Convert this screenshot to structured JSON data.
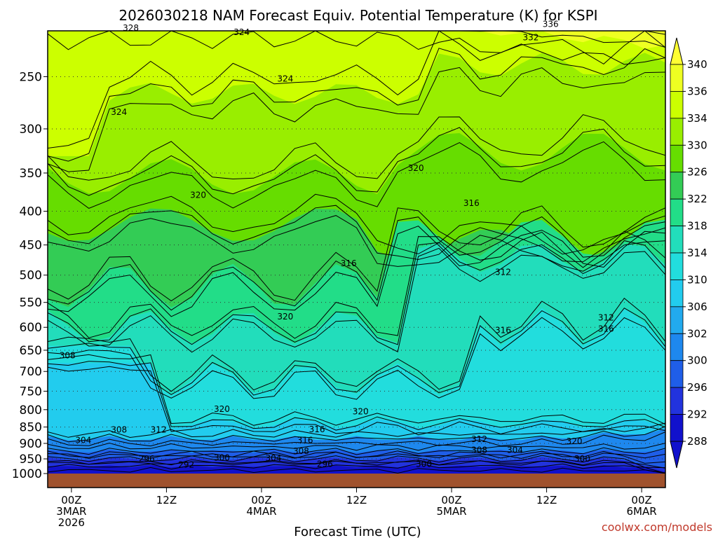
{
  "chart_data": {
    "type": "heatmap",
    "title": "2026030218 NAM Forecast Equiv. Potential Temperature (K) for KSPI",
    "xlabel": "Forecast Time (UTC)",
    "ylabel": "",
    "credit": "coolwx.com/models",
    "y_axis": {
      "scale": "log-pressure",
      "ylim": [
        1000,
        200
      ],
      "ticks": [
        250,
        300,
        350,
        400,
        450,
        500,
        550,
        600,
        650,
        700,
        750,
        800,
        850,
        900,
        950,
        1000
      ]
    },
    "x_axis": {
      "ticks": [
        {
          "hour": 0,
          "lines": [
            "00Z",
            "3MAR",
            "2026"
          ]
        },
        {
          "hour": 12,
          "lines": [
            "12Z"
          ]
        },
        {
          "hour": 24,
          "lines": [
            "00Z",
            "4MAR"
          ]
        },
        {
          "hour": 36,
          "lines": [
            "12Z"
          ]
        },
        {
          "hour": 48,
          "lines": [
            "00Z",
            "5MAR"
          ]
        },
        {
          "hour": 60,
          "lines": [
            "12Z"
          ]
        },
        {
          "hour": 72,
          "lines": [
            "00Z",
            "6MAR"
          ]
        }
      ],
      "xlim": [
        -3,
        75
      ]
    },
    "colorbar": {
      "ticks": [
        340,
        336,
        334,
        330,
        326,
        322,
        318,
        314,
        310,
        306,
        302,
        300,
        296,
        292,
        288
      ],
      "colors": [
        "#ffff33",
        "#eeff22",
        "#ccff00",
        "#99ee00",
        "#66dd00",
        "#33cc55",
        "#22dd88",
        "#22ddbb",
        "#22dddd",
        "#22ccee",
        "#22aaee",
        "#1e88ee",
        "#1f5ee8",
        "#2233dd",
        "#1111cc"
      ]
    },
    "contour_labels": [
      {
        "text": "336",
        "hour": 60.5,
        "p": 208
      },
      {
        "text": "332",
        "hour": 58,
        "p": 218
      },
      {
        "text": "328",
        "hour": 7.5,
        "p": 211
      },
      {
        "text": "324",
        "hour": 21.5,
        "p": 214
      },
      {
        "text": "324",
        "hour": 27,
        "p": 252
      },
      {
        "text": "324",
        "hour": 6,
        "p": 283
      },
      {
        "text": "320",
        "hour": 43.5,
        "p": 344
      },
      {
        "text": "320",
        "hour": 16,
        "p": 378
      },
      {
        "text": "316",
        "hour": 50.5,
        "p": 389
      },
      {
        "text": "316",
        "hour": 35,
        "p": 480
      },
      {
        "text": "312",
        "hour": 54.5,
        "p": 495
      },
      {
        "text": "320",
        "hour": 27,
        "p": 578
      },
      {
        "text": "316",
        "hour": 54.5,
        "p": 606
      },
      {
        "text": "312",
        "hour": 67.5,
        "p": 580
      },
      {
        "text": "316",
        "hour": 67.5,
        "p": 603
      },
      {
        "text": "308",
        "hour": -0.5,
        "p": 662
      },
      {
        "text": "320",
        "hour": 19,
        "p": 798
      },
      {
        "text": "320",
        "hour": 36.5,
        "p": 805
      },
      {
        "text": "316",
        "hour": 31,
        "p": 857
      },
      {
        "text": "316",
        "hour": 29.5,
        "p": 890
      },
      {
        "text": "308",
        "hour": 6,
        "p": 858
      },
      {
        "text": "312",
        "hour": 11,
        "p": 858
      },
      {
        "text": "304",
        "hour": 1.5,
        "p": 890
      },
      {
        "text": "308",
        "hour": 29,
        "p": 925
      },
      {
        "text": "312",
        "hour": 51.5,
        "p": 887
      },
      {
        "text": "320",
        "hour": 63.5,
        "p": 893
      },
      {
        "text": "308",
        "hour": 51.5,
        "p": 921
      },
      {
        "text": "304",
        "hour": 56,
        "p": 921
      },
      {
        "text": "300",
        "hour": 19,
        "p": 947
      },
      {
        "text": "304",
        "hour": 25.5,
        "p": 948
      },
      {
        "text": "296",
        "hour": 9.5,
        "p": 950
      },
      {
        "text": "292",
        "hour": 14.5,
        "p": 970
      },
      {
        "text": "296",
        "hour": 32,
        "p": 967
      },
      {
        "text": "300",
        "hour": 44.5,
        "p": 968
      },
      {
        "text": "300",
        "hour": 64.5,
        "p": 950
      }
    ],
    "contour_levels": [
      336,
      332,
      328,
      324,
      320,
      316,
      312,
      308,
      304,
      300,
      296,
      292
    ]
  }
}
